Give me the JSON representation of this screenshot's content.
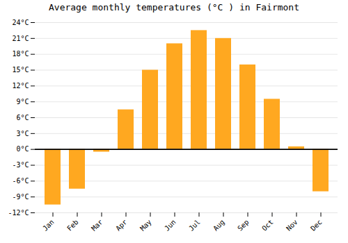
{
  "chart_data": {
    "type": "bar",
    "title": "Average monthly temperatures (°C ) in Fairmont",
    "categories": [
      "Jan",
      "Feb",
      "Mar",
      "Apr",
      "May",
      "Jun",
      "Jul",
      "Aug",
      "Sep",
      "Oct",
      "Nov",
      "Dec"
    ],
    "values": [
      -10.5,
      -7.5,
      -0.5,
      7.5,
      15.0,
      20.0,
      22.5,
      21.0,
      16.0,
      9.5,
      0.5,
      -8.0
    ],
    "color": "#FFA820",
    "ylim": [
      -12,
      24
    ],
    "yticks": [
      {
        "value": -12,
        "label": "-12°C"
      },
      {
        "value": -9,
        "label": "-9°C"
      },
      {
        "value": -6,
        "label": "-6°C"
      },
      {
        "value": -3,
        "label": "-3°C"
      },
      {
        "value": 0,
        "label": "0°C"
      },
      {
        "value": 3,
        "label": "3°C"
      },
      {
        "value": 6,
        "label": "6°C"
      },
      {
        "value": 9,
        "label": "9°C"
      },
      {
        "value": 12,
        "label": "12°C"
      },
      {
        "value": 15,
        "label": "15°C"
      },
      {
        "value": 18,
        "label": "18°C"
      },
      {
        "value": 21,
        "label": "21°C"
      },
      {
        "value": 24,
        "label": "24°C"
      }
    ],
    "grid": true
  }
}
